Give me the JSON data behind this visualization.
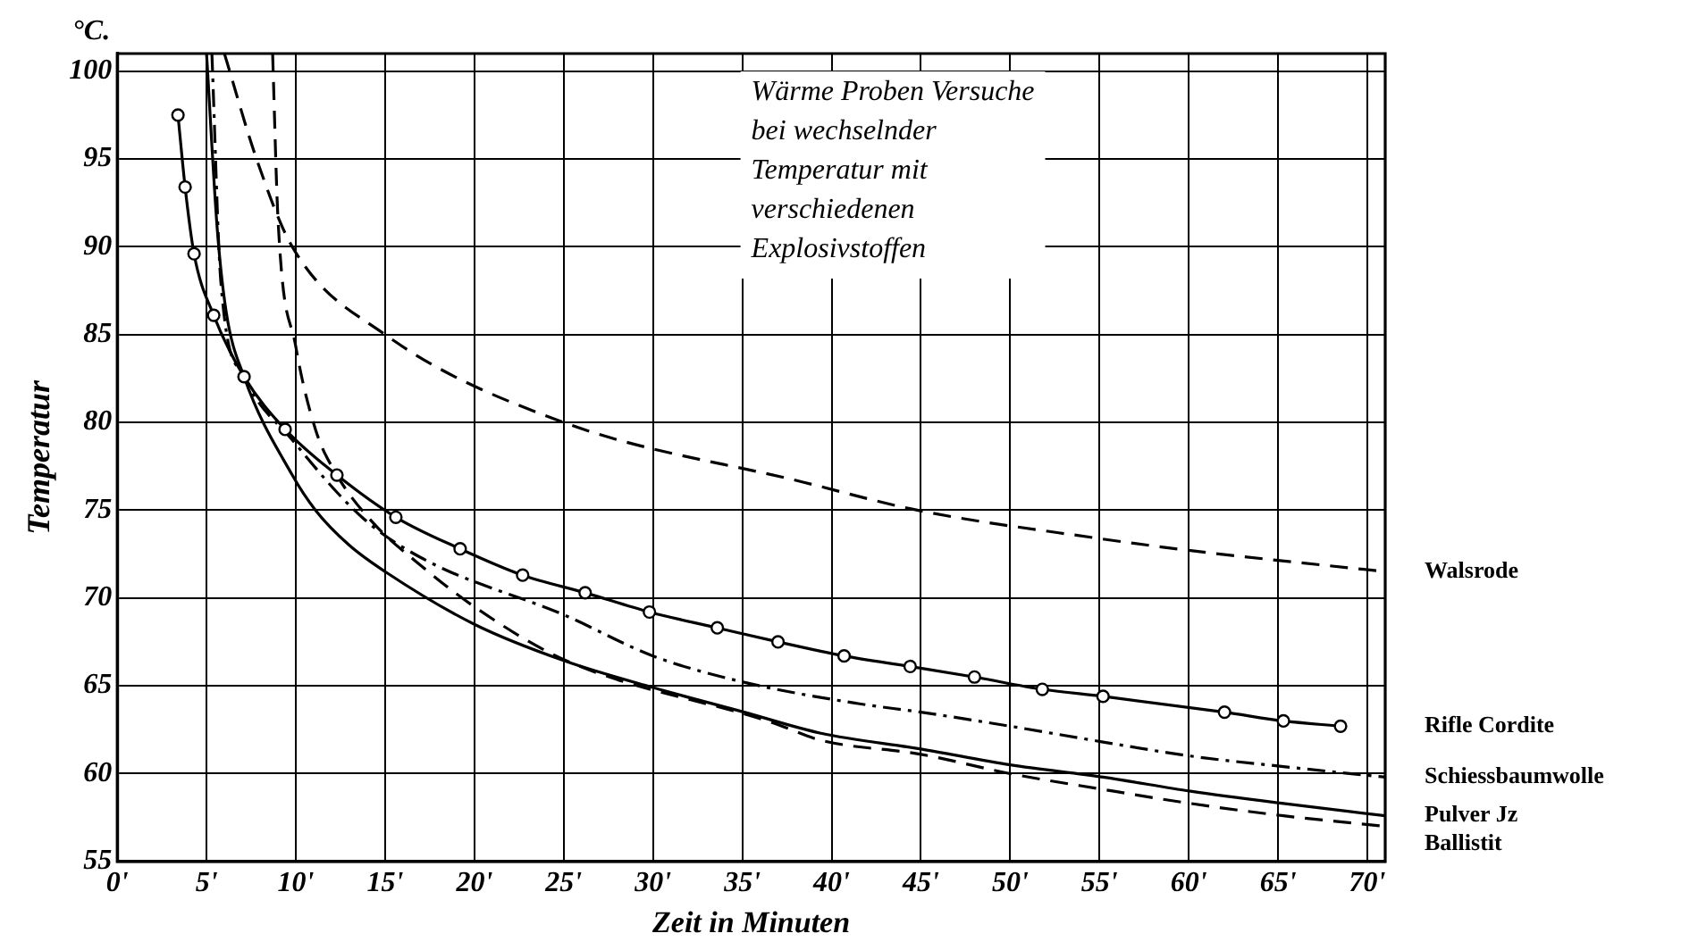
{
  "chart_data": {
    "type": "line",
    "title": "Wärme Proben Versuche bei wechselnder Temperatur mit verschiedenen Explosivstoffen",
    "xlabel": "Zeit in Minuten",
    "ylabel": "Temperatur",
    "annotations": [
      "°C."
    ],
    "xlim": [
      0,
      71
    ],
    "ylim": [
      55,
      101
    ],
    "xticks": [
      {
        "value": 0,
        "label": "0'"
      },
      {
        "value": 5,
        "label": "5'"
      },
      {
        "value": 10,
        "label": "10'"
      },
      {
        "value": 15,
        "label": "15'"
      },
      {
        "value": 20,
        "label": "20'"
      },
      {
        "value": 25,
        "label": "25'"
      },
      {
        "value": 30,
        "label": "30'"
      },
      {
        "value": 35,
        "label": "35'"
      },
      {
        "value": 40,
        "label": "40'"
      },
      {
        "value": 45,
        "label": "45'"
      },
      {
        "value": 50,
        "label": "50'"
      },
      {
        "value": 55,
        "label": "55'"
      },
      {
        "value": 60,
        "label": "60'"
      },
      {
        "value": 65,
        "label": "65'"
      },
      {
        "value": 70,
        "label": "70'"
      }
    ],
    "yticks": [
      55,
      60,
      65,
      70,
      75,
      80,
      85,
      90,
      95,
      100
    ],
    "grid": true,
    "legend": false,
    "series": [
      {
        "name": "Walsrode",
        "color": "#000000",
        "line_style": "dashed",
        "marker": "none",
        "x": [
          6.0,
          7.8,
          9.8,
          15,
          25,
          38.4,
          44.8,
          54.9,
          60.1,
          71
        ],
        "values": [
          101,
          95,
          90,
          85,
          80,
          76.6,
          75,
          73.4,
          72.7,
          71.5
        ]
      },
      {
        "name": "Rifle Cordite",
        "color": "#000000",
        "line_style": "solid",
        "marker": "circle",
        "x": [
          3.4,
          3.8,
          4.3,
          5.4,
          7.1,
          9.4,
          12.3,
          15.6,
          19.2,
          22.7,
          26.2,
          29.8,
          33.6,
          37.0,
          40.7,
          44.4,
          48.0,
          51.8,
          55.2,
          62.0,
          65.3,
          68.5
        ],
        "values": [
          97.5,
          93.4,
          89.6,
          86.1,
          82.6,
          79.6,
          77.0,
          74.6,
          72.8,
          71.3,
          70.3,
          69.2,
          68.3,
          67.5,
          66.7,
          66.1,
          65.5,
          64.8,
          64.4,
          63.5,
          63.0,
          62.7
        ]
      },
      {
        "name": "Schiessbaumwolle",
        "color": "#000000",
        "line_style": "dashdot",
        "marker": "none",
        "x": [
          5.3,
          5.8,
          7.1,
          9.8,
          13.7,
          17,
          25.1,
          30,
          35.1,
          41.4,
          45,
          50,
          55.2,
          60.1,
          65.3,
          71
        ],
        "values": [
          101,
          88,
          82.6,
          79,
          74.6,
          72.3,
          69,
          66.7,
          65.2,
          64.0,
          63.5,
          62.7,
          61.8,
          61.0,
          60.4,
          59.8
        ]
      },
      {
        "name": "Pulver Jz",
        "color": "#000000",
        "line_style": "solid",
        "marker": "none",
        "x": [
          5.0,
          5.6,
          6.1,
          7.1,
          9.8,
          11.1,
          13,
          15,
          20,
          25.1,
          30,
          35.1,
          39.4,
          45,
          50,
          55.2,
          60.1,
          65.3,
          71
        ],
        "values": [
          101,
          91,
          86.3,
          82.6,
          77,
          75,
          73,
          71.5,
          68.5,
          66.4,
          64.9,
          63.5,
          62.3,
          61.4,
          60.5,
          59.8,
          59.0,
          58.3,
          57.6
        ]
      },
      {
        "name": "Ballistit",
        "color": "#000000",
        "line_style": "dashed",
        "marker": "none",
        "x": [
          8.7,
          9.0,
          10,
          11.1,
          12.3,
          14.4,
          16.7,
          20,
          25,
          36.7,
          39.4,
          45,
          50,
          55.2,
          60.1,
          65.3,
          71
        ],
        "values": [
          101,
          91.6,
          84.3,
          79.6,
          77,
          74.2,
          72.1,
          69.5,
          66.5,
          62.9,
          61.9,
          61.1,
          60.0,
          59.1,
          58.3,
          57.6,
          57.0
        ]
      }
    ]
  }
}
